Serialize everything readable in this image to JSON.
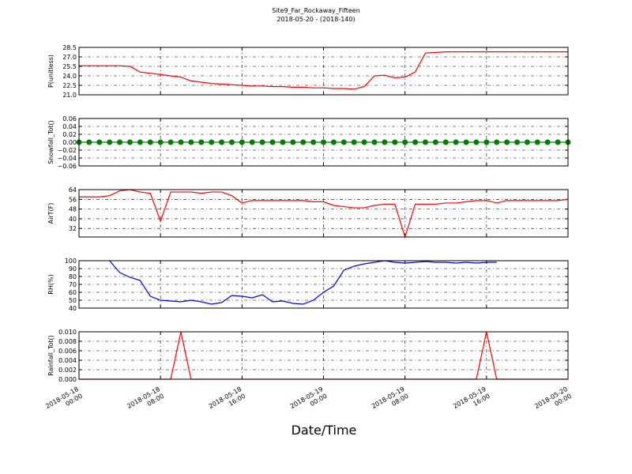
{
  "title": "Site9_Far_Rockaway_Fifteen",
  "subtitle": "2018-05-20 - (2018-140)",
  "xlabel": "Date/Time",
  "x": [
    "2018-05-18 00:00",
    "2018-05-18 01:00",
    "2018-05-18 02:00",
    "2018-05-18 03:00",
    "2018-05-18 04:00",
    "2018-05-18 05:00",
    "2018-05-18 06:00",
    "2018-05-18 07:00",
    "2018-05-18 08:00",
    "2018-05-18 09:00",
    "2018-05-18 10:00",
    "2018-05-18 11:00",
    "2018-05-18 12:00",
    "2018-05-18 13:00",
    "2018-05-18 14:00",
    "2018-05-18 15:00",
    "2018-05-18 16:00",
    "2018-05-18 17:00",
    "2018-05-18 18:00",
    "2018-05-18 19:00",
    "2018-05-18 20:00",
    "2018-05-18 21:00",
    "2018-05-18 22:00",
    "2018-05-18 23:00",
    "2018-05-19 00:00",
    "2018-05-19 01:00",
    "2018-05-19 02:00",
    "2018-05-19 03:00",
    "2018-05-19 04:00",
    "2018-05-19 05:00",
    "2018-05-19 06:00",
    "2018-05-19 07:00",
    "2018-05-19 08:00",
    "2018-05-19 09:00",
    "2018-05-19 10:00",
    "2018-05-19 11:00",
    "2018-05-19 12:00",
    "2018-05-19 13:00",
    "2018-05-19 14:00",
    "2018-05-19 15:00",
    "2018-05-19 16:00",
    "2018-05-19 17:00",
    "2018-05-19 18:00",
    "2018-05-19 19:00",
    "2018-05-19 20:00",
    "2018-05-19 21:00",
    "2018-05-19 22:00",
    "2018-05-19 23:00",
    "2018-05-20 00:00"
  ],
  "xlim": [
    "2018-05-18 00:00",
    "2018-05-20 00:00"
  ],
  "xticks": [
    "2018-05-18 00:00",
    "2018-05-18 08:00",
    "2018-05-18 16:00",
    "2018-05-19 00:00",
    "2018-05-19 08:00",
    "2018-05-19 16:00",
    "2018-05-20 00:00"
  ],
  "chart_data": [
    {
      "type": "line",
      "ylabel": "P(unitless)",
      "color": "#ff0000",
      "grid": true,
      "ylim": [
        21,
        28.5
      ],
      "yticks": [
        {
          "value": 21,
          "label": "21.0"
        },
        {
          "value": 22.5,
          "label": "22.5"
        },
        {
          "value": 24,
          "label": "24.0"
        },
        {
          "value": 25.5,
          "label": "25.5"
        },
        {
          "value": 27,
          "label": "27.0"
        },
        {
          "value": 28.5,
          "label": "28.5"
        }
      ],
      "values": [
        25.6,
        25.6,
        25.6,
        25.6,
        25.6,
        25.5,
        24.6,
        24.4,
        24.2,
        24.0,
        23.8,
        23.2,
        23.0,
        22.8,
        22.7,
        22.6,
        22.5,
        22.4,
        22.4,
        22.3,
        22.3,
        22.2,
        22.2,
        22.1,
        22.1,
        22.0,
        22.0,
        21.9,
        22.3,
        24.0,
        24.1,
        23.7,
        23.8,
        24.6,
        27.6,
        27.7,
        27.8,
        27.8,
        27.8,
        27.8,
        27.8,
        27.8,
        27.8,
        27.8,
        27.8,
        27.8,
        27.8,
        27.8,
        27.8
      ]
    },
    {
      "type": "line",
      "ylabel": "Snowfall_Tot()",
      "color": "#008000",
      "markers": true,
      "grid": true,
      "ylim": [
        -0.06,
        0.06
      ],
      "yticks": [
        {
          "value": -0.06,
          "label": "−0.06"
        },
        {
          "value": -0.04,
          "label": "−0.04"
        },
        {
          "value": -0.02,
          "label": "−0.02"
        },
        {
          "value": 0,
          "label": "0.00"
        },
        {
          "value": 0.02,
          "label": "0.02"
        },
        {
          "value": 0.04,
          "label": "0.04"
        },
        {
          "value": 0.06,
          "label": "0.06"
        }
      ],
      "values": [
        0,
        0,
        0,
        0,
        0,
        0,
        0,
        0,
        0,
        0,
        0,
        0,
        0,
        0,
        0,
        0,
        0,
        0,
        0,
        0,
        0,
        0,
        0,
        0,
        0,
        0,
        0,
        0,
        0,
        0,
        0,
        0,
        0,
        0,
        0,
        0,
        0,
        0,
        0,
        0,
        0,
        0,
        0,
        0,
        0,
        0,
        0,
        0,
        0
      ]
    },
    {
      "type": "line",
      "ylabel": "AirT(F)",
      "color": "#ff0000",
      "grid": true,
      "ylim": [
        25,
        64
      ],
      "yticks": [
        32,
        40,
        48,
        56,
        64
      ],
      "values": [
        58,
        58,
        58,
        59,
        63,
        64,
        62,
        61,
        38,
        62,
        62,
        62,
        61,
        62,
        62,
        59,
        53,
        55,
        55,
        55,
        55,
        55,
        55,
        54,
        54,
        51,
        50,
        49,
        49,
        51,
        52,
        52,
        25,
        52,
        52,
        52,
        53,
        53,
        54,
        55,
        55,
        53,
        55,
        55,
        55,
        55,
        55,
        55,
        56
      ]
    },
    {
      "type": "line",
      "ylabel": "RH(%)",
      "color": "#0000ff",
      "grid": true,
      "ylim": [
        40,
        100
      ],
      "yticks": [
        40,
        50,
        60,
        70,
        80,
        90,
        100
      ],
      "values": [
        null,
        null,
        null,
        100,
        85,
        79,
        75,
        55,
        50,
        49,
        48,
        50,
        48,
        45,
        47,
        56,
        55,
        53,
        57,
        48,
        49,
        46,
        45,
        50,
        60,
        68,
        88,
        93,
        96,
        98,
        100,
        98,
        97,
        98,
        99,
        98,
        98,
        97,
        98,
        97,
        98,
        98,
        null,
        null,
        null,
        null,
        null,
        null,
        null
      ]
    },
    {
      "type": "line",
      "ylabel": "Rainfall_Tot()",
      "color": "#ff0000",
      "grid": true,
      "ylim": [
        0,
        0.01
      ],
      "yticks": [
        {
          "value": 0,
          "label": "0.000"
        },
        {
          "value": 0.002,
          "label": "0.002"
        },
        {
          "value": 0.004,
          "label": "0.004"
        },
        {
          "value": 0.006,
          "label": "0.006"
        },
        {
          "value": 0.008,
          "label": "0.008"
        },
        {
          "value": 0.01,
          "label": "0.010"
        }
      ],
      "values": [
        0,
        0,
        0,
        0,
        0,
        0,
        0,
        0,
        0,
        0,
        0.01,
        0,
        0,
        0,
        0,
        0,
        0,
        0,
        0,
        0,
        0,
        0,
        0,
        0,
        0,
        0,
        0,
        0,
        0,
        0,
        0,
        0,
        0,
        0,
        0,
        0,
        0,
        0,
        0,
        0,
        0.01,
        0,
        0,
        0,
        0,
        0,
        0,
        0,
        0
      ]
    }
  ]
}
